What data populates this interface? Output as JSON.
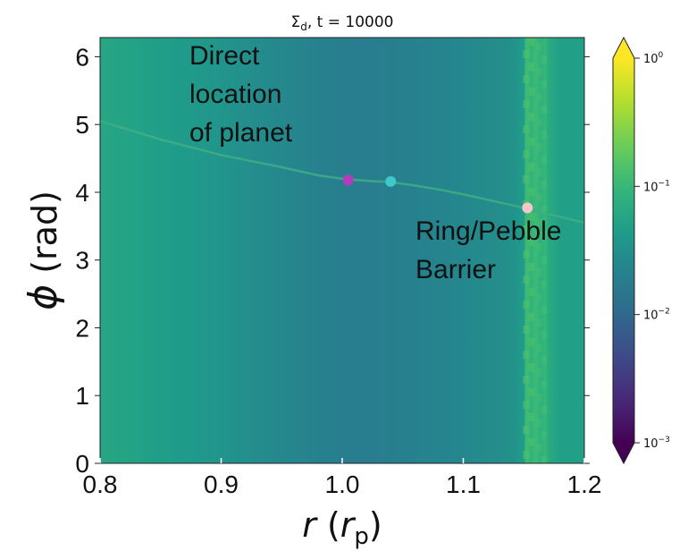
{
  "chart_data": {
    "type": "heatmap",
    "title": "Σ_d,  t = 10000",
    "title_parts": {
      "symbol": "Σ",
      "sub": "d",
      "rest": ",  t = 10000"
    },
    "xlabel": {
      "var": "r",
      "open": " (",
      "unit": "r",
      "unit_sub": "p",
      "close": ")"
    },
    "ylabel": {
      "var": "ϕ",
      "unit": " (rad)"
    },
    "xlim": [
      0.8,
      1.2
    ],
    "ylim": [
      0,
      6.283
    ],
    "x_ticks": [
      {
        "value": 0.8,
        "label": "0.8"
      },
      {
        "value": 0.9,
        "label": "0.9"
      },
      {
        "value": 1.0,
        "label": "1.0"
      },
      {
        "value": 1.1,
        "label": "1.1"
      },
      {
        "value": 1.2,
        "label": "1.2"
      }
    ],
    "y_ticks": [
      {
        "value": 0,
        "label": "0"
      },
      {
        "value": 1,
        "label": "1"
      },
      {
        "value": 2,
        "label": "2"
      },
      {
        "value": 3,
        "label": "3"
      },
      {
        "value": 4,
        "label": "4"
      },
      {
        "value": 5,
        "label": "5"
      },
      {
        "value": 6,
        "label": "6"
      }
    ],
    "colorbar": {
      "scale": "log",
      "colormap": "viridis",
      "range": [
        0.001,
        1
      ],
      "extend": "both",
      "ticks": [
        {
          "value": 1,
          "base": "10",
          "exp": "0"
        },
        {
          "value": 0.1,
          "base": "10",
          "exp": "−1"
        },
        {
          "value": 0.01,
          "base": "10",
          "exp": "−2"
        },
        {
          "value": 0.001,
          "base": "10",
          "exp": "−3"
        }
      ]
    },
    "radial_profile": {
      "r": [
        0.8,
        0.82,
        0.84,
        0.86,
        0.88,
        0.9,
        0.92,
        0.94,
        0.96,
        0.98,
        1.0,
        1.02,
        1.04,
        1.06,
        1.08,
        1.1,
        1.12,
        1.14,
        1.15,
        1.152,
        1.156,
        1.16,
        1.164,
        1.168,
        1.17,
        1.18,
        1.2
      ],
      "sigma": [
        0.06,
        0.055,
        0.05,
        0.045,
        0.04,
        0.036,
        0.031,
        0.027,
        0.024,
        0.021,
        0.019,
        0.019,
        0.02,
        0.021,
        0.023,
        0.025,
        0.028,
        0.032,
        0.045,
        0.12,
        0.085,
        0.11,
        0.08,
        0.1,
        0.07,
        0.05,
        0.05
      ]
    },
    "planet_wake": {
      "r": [
        0.8,
        0.85,
        0.9,
        0.95,
        0.98,
        1.0,
        1.02,
        1.04,
        1.06,
        1.08,
        1.1,
        1.12,
        1.15,
        1.2
      ],
      "phi": [
        5.05,
        4.78,
        4.55,
        4.37,
        4.25,
        4.2,
        4.17,
        4.15,
        4.1,
        4.04,
        3.97,
        3.89,
        3.77,
        3.55
      ]
    },
    "markers": [
      {
        "name": "planet",
        "r": 1.005,
        "phi": 4.18,
        "color": "#b23bbf"
      },
      {
        "name": "wake-point",
        "r": 1.04,
        "phi": 4.16,
        "color": "#3ec8c8"
      },
      {
        "name": "ring-point",
        "r": 1.153,
        "phi": 3.77,
        "color": "#f7c6c8"
      }
    ],
    "annotations": [
      {
        "lines": [
          "Direct",
          "location",
          "of planet"
        ]
      },
      {
        "lines": [
          "Ring/Pebble",
          "Barrier"
        ]
      }
    ]
  }
}
